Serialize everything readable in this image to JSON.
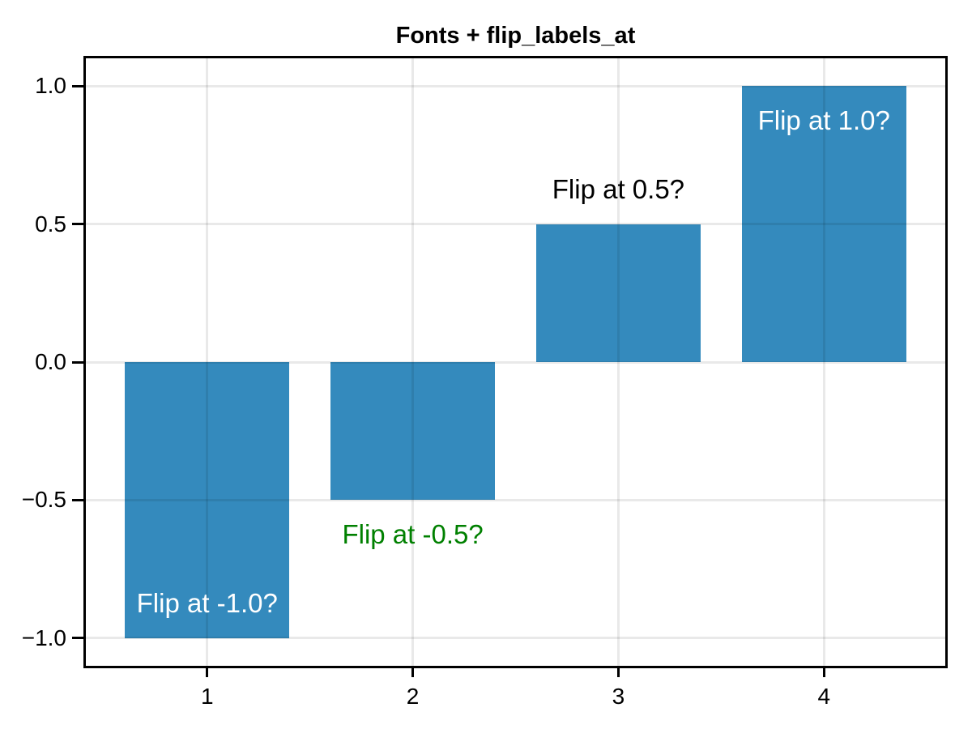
{
  "chart_data": {
    "type": "bar",
    "title": "Fonts + flip_labels_at",
    "x": [
      1,
      2,
      3,
      4
    ],
    "values": [
      -1.0,
      -0.5,
      0.5,
      1.0
    ],
    "bar_width": 0.8,
    "bar_color": "#348ABD",
    "xlim": [
      0.41,
      4.59
    ],
    "ylim": [
      -1.1,
      1.1
    ],
    "x_ticks": [
      1,
      2,
      3,
      4
    ],
    "x_tick_labels": [
      "1",
      "2",
      "3",
      "4"
    ],
    "y_ticks": [
      -1.0,
      -0.5,
      0.0,
      0.5,
      1.0
    ],
    "y_tick_labels": [
      "−1.0",
      "−0.5",
      "0.0",
      "0.5",
      "1.0"
    ],
    "grid": true,
    "grid_color": "rgba(0,0,0,0.085)",
    "spine_color": "#000000",
    "legend": null,
    "bar_labels": [
      {
        "text": "Flip at -1.0?",
        "color": "#FFFFFF",
        "placement": "inside"
      },
      {
        "text": "Flip at -0.5?",
        "color": "#008000",
        "placement": "outside"
      },
      {
        "text": "Flip at 0.5?",
        "color": "#000000",
        "placement": "outside"
      },
      {
        "text": "Flip at 1.0?",
        "color": "#FFFFFF",
        "placement": "inside"
      }
    ]
  }
}
